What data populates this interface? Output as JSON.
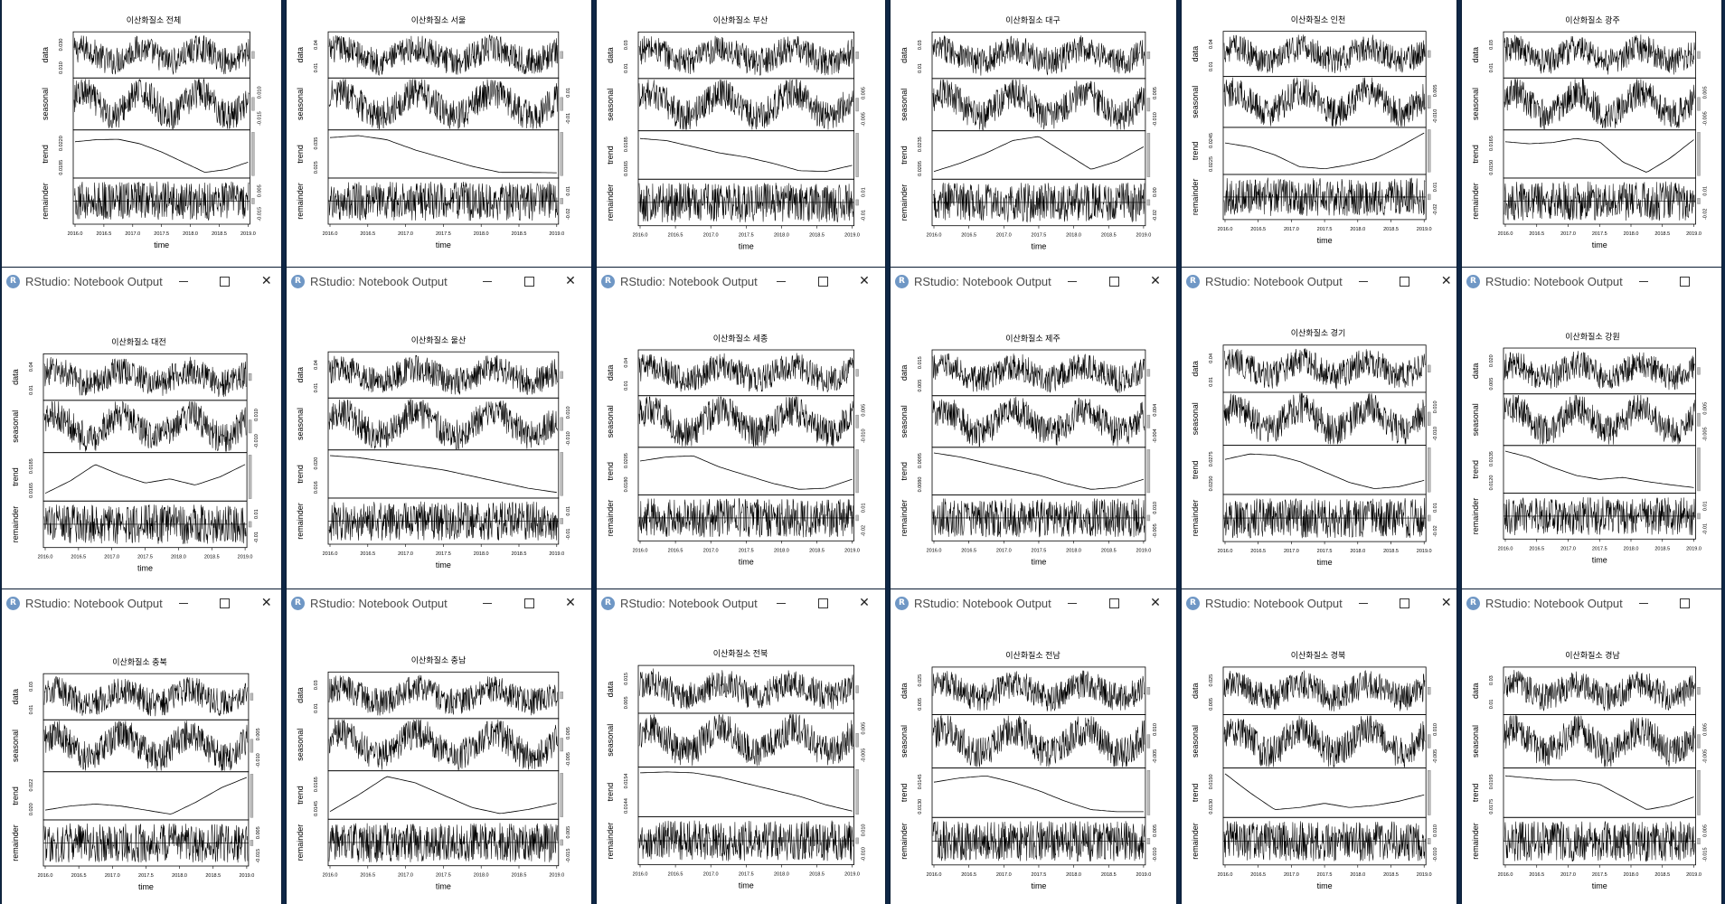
{
  "window_title": "RStudio: Notebook Output",
  "app_icon_letter": "R",
  "window_controls": {
    "minimize": "minimize-icon",
    "maximize": "maximize-icon",
    "close": "close-icon"
  },
  "panel_labels": [
    "data",
    "seasonal",
    "trend",
    "remainder"
  ],
  "x_axis": {
    "label": "time",
    "ticks": [
      "2016.0",
      "2016.5",
      "2017.0",
      "2017.5",
      "2018.0",
      "2018.5",
      "2019.0"
    ]
  },
  "chart_data": [
    {
      "type": "line",
      "title": "이산화질소 전체",
      "y_ticks": {
        "data": [
          "0.010",
          "0.030"
        ],
        "seasonal": [
          "-0.015",
          "0.010"
        ],
        "trend": [
          "0.0185",
          "0.0220"
        ],
        "remainder": [
          "-0.015",
          "0.005"
        ]
      },
      "trend_shape": [
        0.8,
        0.85,
        0.86,
        0.75,
        0.55,
        0.3,
        0.05,
        0.12,
        0.3
      ]
    },
    {
      "type": "line",
      "title": "이산화질소 서울",
      "y_ticks": {
        "data": [
          "0.01",
          "0.04"
        ],
        "seasonal": [
          "-0.01",
          "0.01"
        ],
        "trend": [
          "0.025",
          "0.035"
        ],
        "remainder": [
          "-0.02",
          "0.01"
        ]
      },
      "trend_shape": [
        0.9,
        0.95,
        0.85,
        0.6,
        0.4,
        0.2,
        0.05,
        0.05,
        0.04
      ]
    },
    {
      "type": "line",
      "title": "이산화질소 부산",
      "y_ticks": {
        "data": [
          "0.01",
          "0.03"
        ],
        "seasonal": [
          "-0.005",
          "0.005"
        ],
        "trend": [
          "0.0165",
          "0.0185"
        ],
        "remainder": [
          "-0.01",
          "0.01"
        ]
      },
      "trend_shape": [
        0.9,
        0.85,
        0.7,
        0.55,
        0.45,
        0.3,
        0.12,
        0.1,
        0.25
      ]
    },
    {
      "type": "line",
      "title": "이산화질소 대구",
      "y_ticks": {
        "data": [
          "0.01",
          "0.03"
        ],
        "seasonal": [
          "-0.010",
          "0.005"
        ],
        "trend": [
          "0.0205",
          "0.0235"
        ],
        "remainder": [
          "-0.02",
          "0.00"
        ]
      },
      "trend_shape": [
        0.1,
        0.3,
        0.55,
        0.85,
        0.95,
        0.55,
        0.15,
        0.35,
        0.7
      ]
    },
    {
      "type": "line",
      "title": "이산화질소 인천",
      "y_ticks": {
        "data": [
          "0.01",
          "0.04"
        ],
        "seasonal": [
          "-0.010",
          "0.005"
        ],
        "trend": [
          "0.0225",
          "0.0245"
        ],
        "remainder": [
          "-0.02",
          "0.01"
        ]
      },
      "trend_shape": [
        0.7,
        0.6,
        0.4,
        0.1,
        0.05,
        0.15,
        0.3,
        0.6,
        0.95
      ]
    },
    {
      "type": "line",
      "title": "이산화질소 광주",
      "y_ticks": {
        "data": [
          "0.01",
          "0.03"
        ],
        "seasonal": [
          "-0.005",
          "0.005"
        ],
        "trend": [
          "0.0150",
          "0.0165"
        ],
        "remainder": [
          "-0.02",
          "0.01"
        ]
      },
      "trend_shape": [
        0.8,
        0.75,
        0.78,
        0.88,
        0.8,
        0.3,
        0.05,
        0.4,
        0.85
      ]
    },
    {
      "type": "line",
      "title": "이산화질소 대전",
      "y_ticks": {
        "data": [
          "0.01",
          "0.04"
        ],
        "seasonal": [
          "-0.010",
          "0.010"
        ],
        "trend": [
          "0.0165",
          "0.0185"
        ],
        "remainder": [
          "-0.01",
          "0.01"
        ]
      },
      "trend_shape": [
        0.1,
        0.4,
        0.8,
        0.55,
        0.35,
        0.45,
        0.3,
        0.5,
        0.8
      ]
    },
    {
      "type": "line",
      "title": "이산화질소 울산",
      "y_ticks": {
        "data": [
          "0.01",
          "0.04"
        ],
        "seasonal": [
          "-0.010",
          "0.010"
        ],
        "trend": [
          "0.016",
          "0.020"
        ],
        "remainder": [
          "-0.01",
          "0.01"
        ]
      },
      "trend_shape": [
        0.95,
        0.9,
        0.8,
        0.7,
        0.6,
        0.45,
        0.3,
        0.15,
        0.05
      ]
    },
    {
      "type": "line",
      "title": "이산화질소 세종",
      "y_ticks": {
        "data": [
          "0.01",
          "0.04"
        ],
        "seasonal": [
          "-0.010",
          "0.005"
        ],
        "trend": [
          "0.0180",
          "0.0205"
        ],
        "remainder": [
          "-0.02",
          "0.01"
        ]
      },
      "trend_shape": [
        0.75,
        0.85,
        0.88,
        0.6,
        0.4,
        0.2,
        0.05,
        0.08,
        0.3
      ]
    },
    {
      "type": "line",
      "title": "이산화질소 제주",
      "y_ticks": {
        "data": [
          "0.005",
          "0.015"
        ],
        "seasonal": [
          "-0.004",
          "0.004"
        ],
        "trend": [
          "0.0080",
          "0.0095"
        ],
        "remainder": [
          "-0.005",
          "0.010"
        ]
      },
      "trend_shape": [
        0.95,
        0.85,
        0.7,
        0.55,
        0.4,
        0.2,
        0.05,
        0.1,
        0.3
      ]
    },
    {
      "type": "line",
      "title": "이산화질소 경기",
      "y_ticks": {
        "data": [
          "0.01",
          "0.04"
        ],
        "seasonal": [
          "-0.010",
          "0.010"
        ],
        "trend": [
          "0.0250",
          "0.0275"
        ],
        "remainder": [
          "-0.02",
          "0.01"
        ]
      },
      "trend_shape": [
        0.75,
        0.88,
        0.85,
        0.7,
        0.45,
        0.2,
        0.05,
        0.1,
        0.25
      ]
    },
    {
      "type": "line",
      "title": "이산화질소 강원",
      "y_ticks": {
        "data": [
          "0.005",
          "0.020"
        ],
        "seasonal": [
          "-0.005",
          "0.005"
        ],
        "trend": [
          "0.0120",
          "0.0135"
        ],
        "remainder": [
          "-0.01",
          "0.01"
        ]
      },
      "trend_shape": [
        0.95,
        0.8,
        0.55,
        0.35,
        0.25,
        0.3,
        0.2,
        0.12,
        0.05
      ]
    },
    {
      "type": "line",
      "title": "이산화질소 충북",
      "y_ticks": {
        "data": [
          "0.01",
          "0.03"
        ],
        "seasonal": [
          "-0.010",
          "0.005"
        ],
        "trend": [
          "0.020",
          "0.022"
        ],
        "remainder": [
          "-0.015",
          "0.005"
        ]
      },
      "trend_shape": [
        0.15,
        0.25,
        0.3,
        0.25,
        0.15,
        0.05,
        0.35,
        0.7,
        0.95
      ]
    },
    {
      "type": "line",
      "title": "이산화질소 충남",
      "y_ticks": {
        "data": [
          "0.01",
          "0.03"
        ],
        "seasonal": [
          "-0.005",
          "0.005"
        ],
        "trend": [
          "0.0145",
          "0.0165"
        ],
        "remainder": [
          "-0.015",
          "0.005"
        ]
      },
      "trend_shape": [
        0.1,
        0.5,
        0.95,
        0.8,
        0.5,
        0.2,
        0.05,
        0.15,
        0.3
      ]
    },
    {
      "type": "line",
      "title": "이산화질소 전북",
      "y_ticks": {
        "data": [
          "0.005",
          "0.015"
        ],
        "seasonal": [
          "-0.005",
          "0.005"
        ],
        "trend": [
          "0.0144",
          "0.0154"
        ],
        "remainder": [
          "-0.010",
          "0.010"
        ]
      },
      "trend_shape": [
        0.95,
        0.97,
        0.95,
        0.85,
        0.7,
        0.55,
        0.4,
        0.2,
        0.05
      ]
    },
    {
      "type": "line",
      "title": "이산화질소 전남",
      "y_ticks": {
        "data": [
          "0.005",
          "0.025"
        ],
        "seasonal": [
          "-0.005",
          "0.010"
        ],
        "trend": [
          "0.0130",
          "0.0145"
        ],
        "remainder": [
          "-0.010",
          "0.005"
        ]
      },
      "trend_shape": [
        0.75,
        0.85,
        0.9,
        0.75,
        0.55,
        0.3,
        0.1,
        0.05,
        0.05
      ]
    },
    {
      "type": "line",
      "title": "이산화질소 경북",
      "y_ticks": {
        "data": [
          "0.005",
          "0.025"
        ],
        "seasonal": [
          "-0.005",
          "0.010"
        ],
        "trend": [
          "0.0130",
          "0.0150"
        ],
        "remainder": [
          "-0.010",
          "0.010"
        ]
      },
      "trend_shape": [
        0.95,
        0.5,
        0.1,
        0.15,
        0.25,
        0.15,
        0.2,
        0.3,
        0.45
      ]
    },
    {
      "type": "line",
      "title": "이산화질소 경남",
      "y_ticks": {
        "data": [
          "0.01",
          "0.03"
        ],
        "seasonal": [
          "-0.005",
          "0.005"
        ],
        "trend": [
          "0.0175",
          "0.0195"
        ],
        "remainder": [
          "-0.015",
          "0.005"
        ]
      },
      "trend_shape": [
        0.9,
        0.85,
        0.8,
        0.8,
        0.7,
        0.4,
        0.1,
        0.2,
        0.4
      ]
    }
  ]
}
